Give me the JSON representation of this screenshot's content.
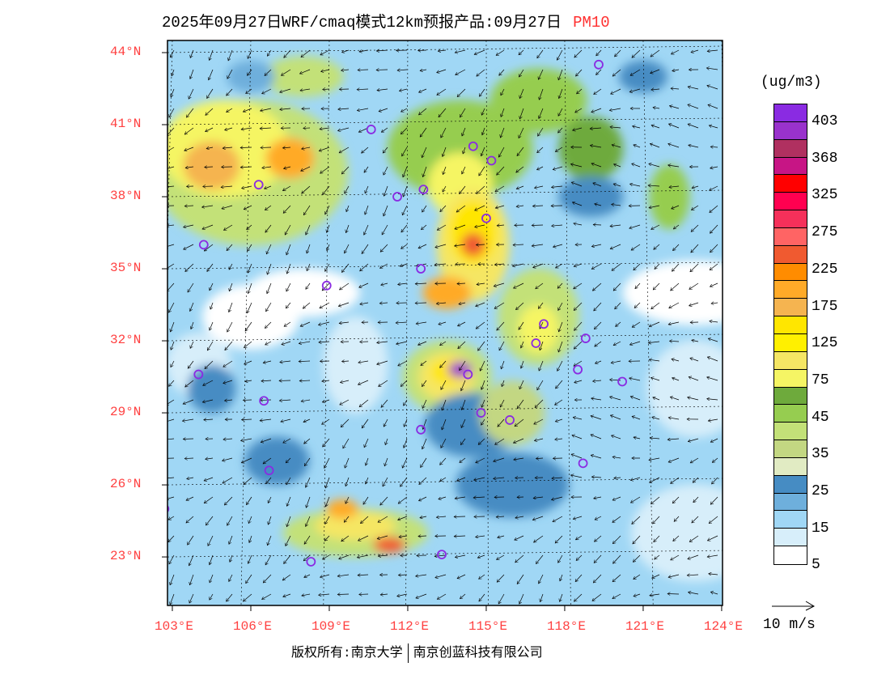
{
  "title": {
    "prefix": "2025年09月27日WRF/cmaq模式12km预报产品:09月27日",
    "pollutant": "PM10"
  },
  "map": {
    "lat_labels": [
      "44°N",
      "41°N",
      "38°N",
      "35°N",
      "32°N",
      "29°N",
      "26°N",
      "23°N"
    ],
    "lon_labels": [
      "103°E",
      "106°E",
      "109°E",
      "112°E",
      "115°E",
      "118°E",
      "121°E",
      "124°E"
    ]
  },
  "legend": {
    "unit": "(ug/m3)",
    "colors": [
      "#8a2be2",
      "#9932cc",
      "#b03060",
      "#c71585",
      "#ff0000",
      "#ff0050",
      "#f5305a",
      "#ff6464",
      "#f05a30",
      "#ff8c00",
      "#ffaa28",
      "#f5b450",
      "#ffe600",
      "#fff000",
      "#f5e664",
      "#f5f564",
      "#6eaa3c",
      "#96cd50",
      "#c3e178",
      "#c3d782",
      "#e1ebc3",
      "#468cc3",
      "#6eafdc",
      "#a0d7f5",
      "#d7eefa",
      "#ffffff"
    ],
    "labels": [
      "403",
      "368",
      "325",
      "275",
      "225",
      "175",
      "125",
      "75",
      "45",
      "35",
      "25",
      "15",
      "5"
    ],
    "wind_ref": "10 m/s"
  },
  "footer": {
    "left": "版权所有:南京大学",
    "right": "南京创蓝科技有限公司"
  }
}
